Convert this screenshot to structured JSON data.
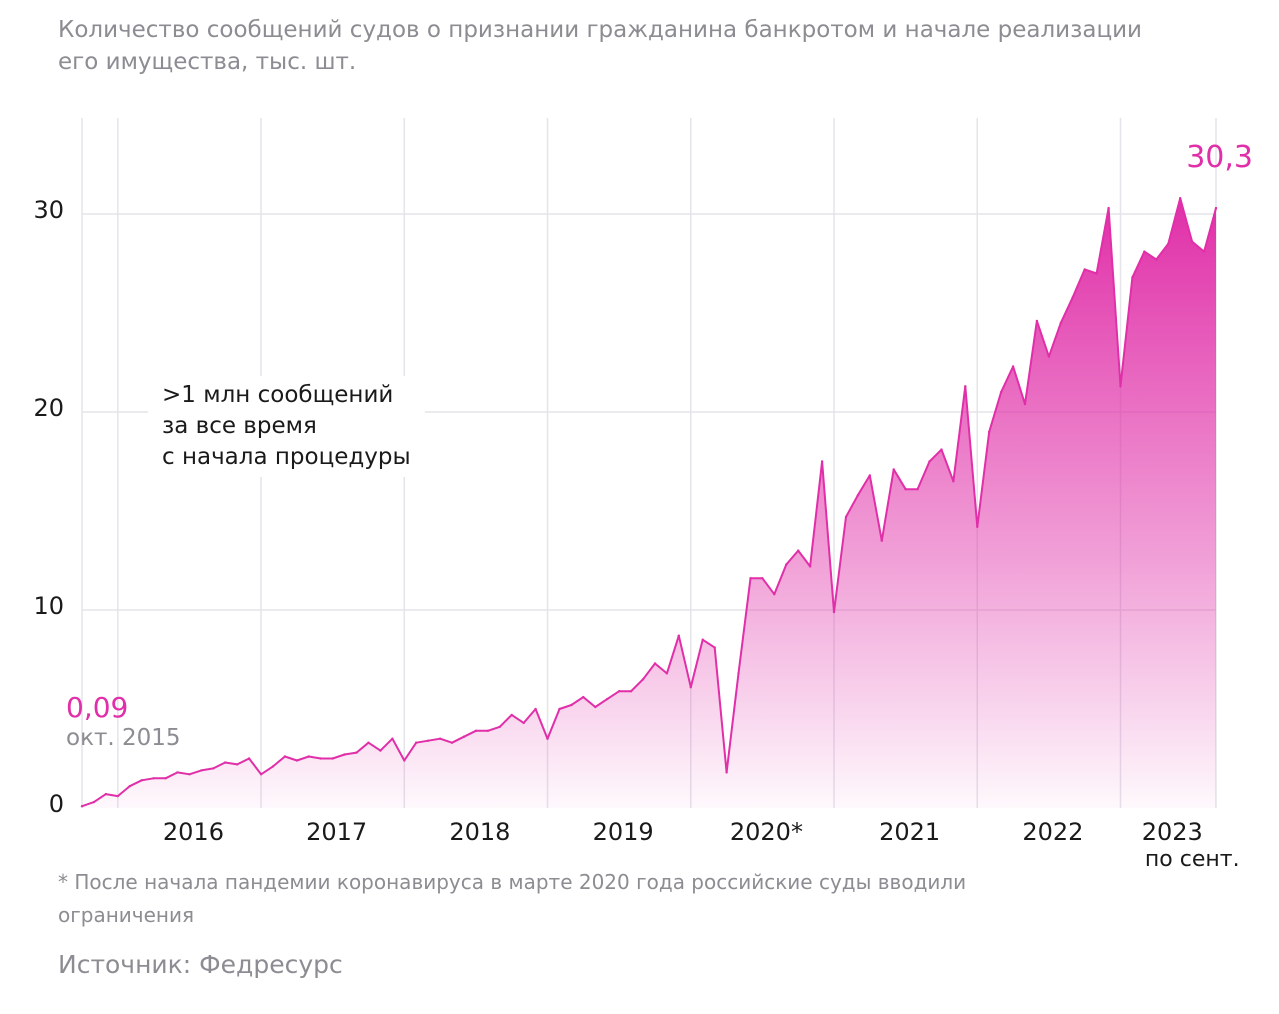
{
  "chart_data": {
    "type": "area",
    "title": "Количество сообщений судов о признании гражданина банкротом и начале реализации его имущества, тыс. шт.",
    "ylim": [
      0,
      35
    ],
    "y_ticks": [
      {
        "value": 0,
        "label": "0"
      },
      {
        "value": 10,
        "label": "10"
      },
      {
        "value": 20,
        "label": "20"
      },
      {
        "value": 30,
        "label": "30"
      }
    ],
    "x_ticks": [
      {
        "year": 2016,
        "label": "2016",
        "sublabel": ""
      },
      {
        "year": 2017,
        "label": "2017",
        "sublabel": ""
      },
      {
        "year": 2018,
        "label": "2018",
        "sublabel": ""
      },
      {
        "year": 2019,
        "label": "2019",
        "sublabel": ""
      },
      {
        "year": 2020,
        "label": "2020*",
        "sublabel": ""
      },
      {
        "year": 2021,
        "label": "2021",
        "sublabel": ""
      },
      {
        "year": 2022,
        "label": "2022",
        "sublabel": ""
      },
      {
        "year": 2023,
        "label": "2023",
        "sublabel": "по сент."
      }
    ],
    "grid": true,
    "legend": "none",
    "color": "#e02fa8",
    "series": [
      {
        "values": [
          {
            "x": "2015-10",
            "y": 0.09
          },
          {
            "x": "2015-11",
            "y": 0.3
          },
          {
            "x": "2015-12",
            "y": 0.7
          },
          {
            "x": "2016-01",
            "y": 0.6
          },
          {
            "x": "2016-02",
            "y": 1.1
          },
          {
            "x": "2016-03",
            "y": 1.4
          },
          {
            "x": "2016-04",
            "y": 1.5
          },
          {
            "x": "2016-05",
            "y": 1.5
          },
          {
            "x": "2016-06",
            "y": 1.8
          },
          {
            "x": "2016-07",
            "y": 1.7
          },
          {
            "x": "2016-08",
            "y": 1.9
          },
          {
            "x": "2016-09",
            "y": 2.0
          },
          {
            "x": "2016-10",
            "y": 2.3
          },
          {
            "x": "2016-11",
            "y": 2.2
          },
          {
            "x": "2016-12",
            "y": 2.5
          },
          {
            "x": "2017-01",
            "y": 1.7
          },
          {
            "x": "2017-02",
            "y": 2.1
          },
          {
            "x": "2017-03",
            "y": 2.6
          },
          {
            "x": "2017-04",
            "y": 2.4
          },
          {
            "x": "2017-05",
            "y": 2.6
          },
          {
            "x": "2017-06",
            "y": 2.5
          },
          {
            "x": "2017-07",
            "y": 2.5
          },
          {
            "x": "2017-08",
            "y": 2.7
          },
          {
            "x": "2017-09",
            "y": 2.8
          },
          {
            "x": "2017-10",
            "y": 3.3
          },
          {
            "x": "2017-11",
            "y": 2.9
          },
          {
            "x": "2017-12",
            "y": 3.5
          },
          {
            "x": "2018-01",
            "y": 2.4
          },
          {
            "x": "2018-02",
            "y": 3.3
          },
          {
            "x": "2018-03",
            "y": 3.4
          },
          {
            "x": "2018-04",
            "y": 3.5
          },
          {
            "x": "2018-05",
            "y": 3.3
          },
          {
            "x": "2018-06",
            "y": 3.6
          },
          {
            "x": "2018-07",
            "y": 3.9
          },
          {
            "x": "2018-08",
            "y": 3.9
          },
          {
            "x": "2018-09",
            "y": 4.1
          },
          {
            "x": "2018-10",
            "y": 4.7
          },
          {
            "x": "2018-11",
            "y": 4.3
          },
          {
            "x": "2018-12",
            "y": 5.0
          },
          {
            "x": "2019-01",
            "y": 3.5
          },
          {
            "x": "2019-02",
            "y": 5.0
          },
          {
            "x": "2019-03",
            "y": 5.2
          },
          {
            "x": "2019-04",
            "y": 5.6
          },
          {
            "x": "2019-05",
            "y": 5.1
          },
          {
            "x": "2019-06",
            "y": 5.5
          },
          {
            "x": "2019-07",
            "y": 5.9
          },
          {
            "x": "2019-08",
            "y": 5.9
          },
          {
            "x": "2019-09",
            "y": 6.5
          },
          {
            "x": "2019-10",
            "y": 7.3
          },
          {
            "x": "2019-11",
            "y": 6.8
          },
          {
            "x": "2019-12",
            "y": 8.7
          },
          {
            "x": "2020-01",
            "y": 6.1
          },
          {
            "x": "2020-02",
            "y": 8.5
          },
          {
            "x": "2020-03",
            "y": 8.1
          },
          {
            "x": "2020-04",
            "y": 1.8
          },
          {
            "x": "2020-05",
            "y": 6.8
          },
          {
            "x": "2020-06",
            "y": 11.6
          },
          {
            "x": "2020-07",
            "y": 11.6
          },
          {
            "x": "2020-08",
            "y": 10.8
          },
          {
            "x": "2020-09",
            "y": 12.3
          },
          {
            "x": "2020-10",
            "y": 13.0
          },
          {
            "x": "2020-11",
            "y": 12.2
          },
          {
            "x": "2020-12",
            "y": 17.5
          },
          {
            "x": "2021-01",
            "y": 9.9
          },
          {
            "x": "2021-02",
            "y": 14.7
          },
          {
            "x": "2021-03",
            "y": 15.8
          },
          {
            "x": "2021-04",
            "y": 16.8
          },
          {
            "x": "2021-05",
            "y": 13.5
          },
          {
            "x": "2021-06",
            "y": 17.1
          },
          {
            "x": "2021-07",
            "y": 16.1
          },
          {
            "x": "2021-08",
            "y": 16.1
          },
          {
            "x": "2021-09",
            "y": 17.5
          },
          {
            "x": "2021-10",
            "y": 18.1
          },
          {
            "x": "2021-11",
            "y": 16.5
          },
          {
            "x": "2021-12",
            "y": 21.3
          },
          {
            "x": "2022-01",
            "y": 14.2
          },
          {
            "x": "2022-02",
            "y": 19.0
          },
          {
            "x": "2022-03",
            "y": 21.0
          },
          {
            "x": "2022-04",
            "y": 22.3
          },
          {
            "x": "2022-05",
            "y": 20.4
          },
          {
            "x": "2022-06",
            "y": 24.6
          },
          {
            "x": "2022-07",
            "y": 22.8
          },
          {
            "x": "2022-08",
            "y": 24.5
          },
          {
            "x": "2022-09",
            "y": 25.8
          },
          {
            "x": "2022-10",
            "y": 27.2
          },
          {
            "x": "2022-11",
            "y": 27.0
          },
          {
            "x": "2022-12",
            "y": 30.3
          },
          {
            "x": "2023-01",
            "y": 21.3
          },
          {
            "x": "2023-02",
            "y": 26.8
          },
          {
            "x": "2023-03",
            "y": 28.1
          },
          {
            "x": "2023-04",
            "y": 27.7
          },
          {
            "x": "2023-05",
            "y": 28.5
          },
          {
            "x": "2023-06",
            "y": 30.8
          },
          {
            "x": "2023-07",
            "y": 28.6
          },
          {
            "x": "2023-08",
            "y": 28.1
          },
          {
            "x": "2023-09",
            "y": 30.3
          }
        ]
      }
    ],
    "annotations": {
      "start_value": "0,09",
      "start_date": "окт. 2015",
      "end_value": "30,3",
      "box_lines": [
        ">1 млн сообщений",
        "за все время",
        "с начала процедуры"
      ]
    }
  },
  "footnote": "* После начала пандемии коронавируса в марте 2020 года российские суды вводили ограничения",
  "source": "Источник: Федресурс"
}
